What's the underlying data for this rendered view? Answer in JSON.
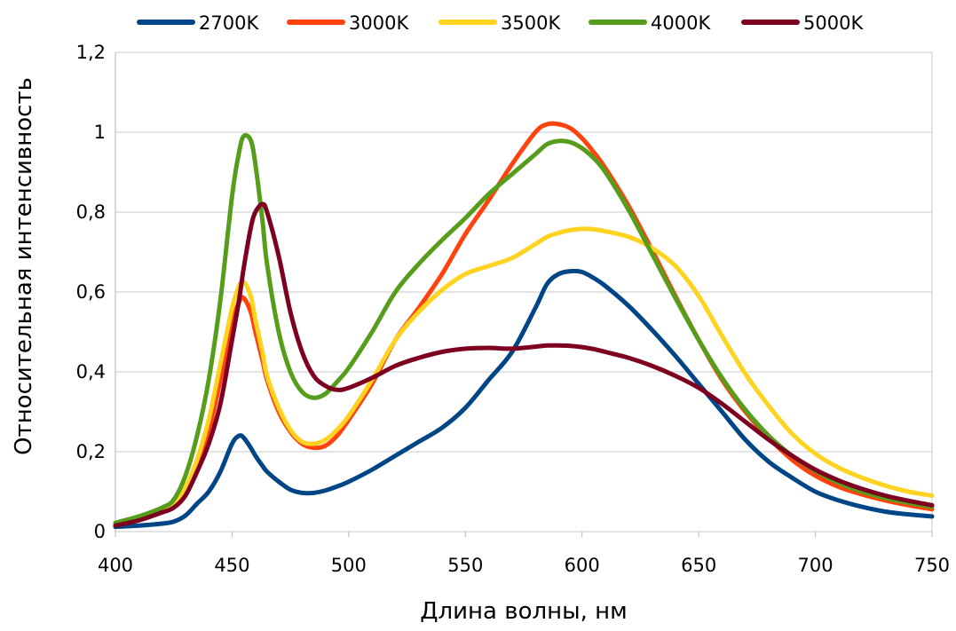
{
  "chart_data": {
    "type": "line",
    "title": "",
    "xlabel": "Длина волны, нм",
    "ylabel": "Относительная интенсивность",
    "xlim": [
      400,
      750
    ],
    "ylim": [
      0,
      1.2
    ],
    "x_ticks": [
      400,
      450,
      500,
      550,
      600,
      650,
      700,
      750
    ],
    "x_tick_labels": [
      "400",
      "450",
      "500",
      "550",
      "600",
      "650",
      "700",
      "750"
    ],
    "y_ticks": [
      0,
      0.2,
      0.4,
      0.6,
      0.8,
      1.0,
      1.2
    ],
    "y_tick_labels": [
      "0",
      "0,2",
      "0,4",
      "0,6",
      "0,8",
      "1",
      "1,2"
    ],
    "grid": "horizontal",
    "legend_position": "top",
    "x": [
      400,
      410,
      420,
      425,
      430,
      435,
      440,
      445,
      450,
      453,
      455,
      458,
      460,
      463,
      465,
      470,
      475,
      480,
      485,
      490,
      495,
      500,
      510,
      520,
      530,
      540,
      550,
      560,
      570,
      580,
      585,
      590,
      595,
      600,
      605,
      610,
      620,
      630,
      640,
      650,
      660,
      670,
      680,
      690,
      700,
      710,
      720,
      730,
      740,
      750
    ],
    "series": [
      {
        "name": "2700K",
        "color": "#004586",
        "values": [
          0.012,
          0.015,
          0.02,
          0.025,
          0.04,
          0.07,
          0.1,
          0.15,
          0.22,
          0.24,
          0.235,
          0.21,
          0.19,
          0.165,
          0.15,
          0.125,
          0.105,
          0.097,
          0.097,
          0.103,
          0.113,
          0.125,
          0.155,
          0.19,
          0.225,
          0.26,
          0.31,
          0.38,
          0.45,
          0.56,
          0.62,
          0.645,
          0.652,
          0.65,
          0.635,
          0.615,
          0.565,
          0.505,
          0.44,
          0.37,
          0.3,
          0.23,
          0.175,
          0.135,
          0.1,
          0.078,
          0.062,
          0.05,
          0.043,
          0.038
        ]
      },
      {
        "name": "3000K",
        "color": "#ff420e",
        "values": [
          0.018,
          0.03,
          0.05,
          0.065,
          0.1,
          0.16,
          0.25,
          0.38,
          0.52,
          0.575,
          0.585,
          0.55,
          0.5,
          0.43,
          0.38,
          0.3,
          0.25,
          0.22,
          0.21,
          0.215,
          0.24,
          0.28,
          0.37,
          0.48,
          0.56,
          0.645,
          0.745,
          0.83,
          0.92,
          1.0,
          1.02,
          1.02,
          1.01,
          0.985,
          0.95,
          0.91,
          0.815,
          0.705,
          0.59,
          0.48,
          0.38,
          0.3,
          0.235,
          0.18,
          0.14,
          0.112,
          0.093,
          0.078,
          0.066,
          0.056
        ]
      },
      {
        "name": "3500K",
        "color": "#ffd320",
        "values": [
          0.02,
          0.03,
          0.05,
          0.065,
          0.11,
          0.18,
          0.28,
          0.42,
          0.56,
          0.615,
          0.625,
          0.59,
          0.53,
          0.45,
          0.39,
          0.31,
          0.255,
          0.225,
          0.22,
          0.23,
          0.255,
          0.29,
          0.38,
          0.48,
          0.55,
          0.605,
          0.645,
          0.665,
          0.685,
          0.72,
          0.738,
          0.748,
          0.755,
          0.758,
          0.757,
          0.752,
          0.738,
          0.71,
          0.665,
          0.59,
          0.49,
          0.395,
          0.315,
          0.245,
          0.195,
          0.16,
          0.135,
          0.115,
          0.1,
          0.09
        ]
      },
      {
        "name": "4000K",
        "color": "#579d1c",
        "values": [
          0.022,
          0.038,
          0.06,
          0.08,
          0.14,
          0.24,
          0.38,
          0.58,
          0.84,
          0.95,
          0.99,
          0.98,
          0.92,
          0.78,
          0.67,
          0.5,
          0.4,
          0.35,
          0.335,
          0.345,
          0.375,
          0.41,
          0.5,
          0.6,
          0.67,
          0.73,
          0.785,
          0.845,
          0.895,
          0.945,
          0.97,
          0.978,
          0.975,
          0.96,
          0.935,
          0.9,
          0.805,
          0.695,
          0.585,
          0.48,
          0.385,
          0.305,
          0.24,
          0.19,
          0.152,
          0.122,
          0.1,
          0.084,
          0.072,
          0.062
        ]
      },
      {
        "name": "5000K",
        "color": "#7e0021",
        "values": [
          0.015,
          0.028,
          0.048,
          0.06,
          0.09,
          0.15,
          0.22,
          0.32,
          0.48,
          0.58,
          0.66,
          0.76,
          0.8,
          0.82,
          0.8,
          0.69,
          0.55,
          0.45,
          0.39,
          0.365,
          0.355,
          0.36,
          0.385,
          0.415,
          0.435,
          0.45,
          0.458,
          0.46,
          0.458,
          0.463,
          0.466,
          0.466,
          0.465,
          0.462,
          0.457,
          0.45,
          0.435,
          0.415,
          0.39,
          0.36,
          0.32,
          0.275,
          0.23,
          0.19,
          0.155,
          0.128,
          0.107,
          0.09,
          0.077,
          0.066
        ]
      }
    ]
  }
}
